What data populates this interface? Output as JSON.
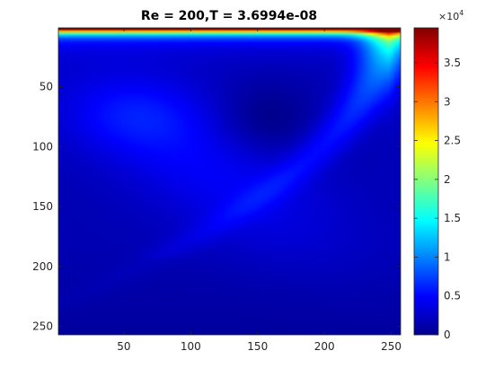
{
  "chart_data": {
    "type": "heatmap",
    "title": "Re = 200,T = 3.6994e-08",
    "xlabel": "",
    "ylabel": "",
    "xlim": [
      1,
      257
    ],
    "ylim": [
      1,
      257
    ],
    "y_reversed": true,
    "x_ticks": [
      50,
      100,
      150,
      200,
      250
    ],
    "x_tick_labels": [
      "50",
      "100",
      "150",
      "200",
      "250"
    ],
    "y_ticks": [
      50,
      100,
      150,
      200,
      250
    ],
    "y_tick_labels": [
      "50",
      "100",
      "150",
      "200",
      "250"
    ],
    "colorscale": "jet",
    "colorbar": {
      "min": 0,
      "max": 39500,
      "ticks": [
        0,
        5000,
        10000,
        15000,
        20000,
        25000,
        30000,
        35000
      ],
      "tick_labels": [
        "0",
        "0.5",
        "1",
        "1.5",
        "2",
        "2.5",
        "3",
        "3.5"
      ],
      "exponent_prefix": "×10",
      "exponent_power": "4"
    },
    "field_description": "lid-driven cavity velocity magnitude; maximum along top lid, bright streak descending along right wall, weak diagonal band across interior"
  }
}
